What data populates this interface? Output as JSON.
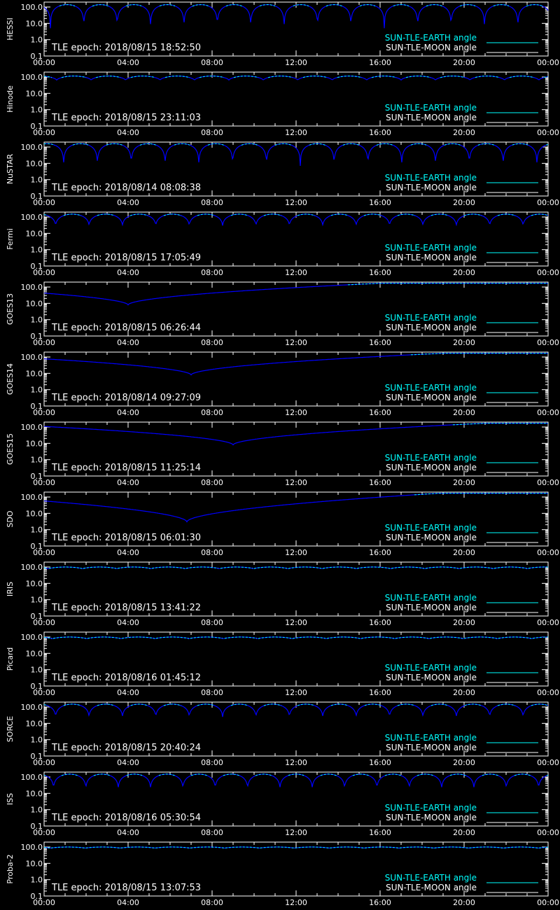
{
  "colors": {
    "background": "#000000",
    "axis": "#ffffff",
    "earth_curve": "#00ffff",
    "moon_curve": "#0000ff",
    "earth_legend": "#00ffff",
    "moon_legend": "#ffffff"
  },
  "legend": {
    "earth_label": "SUN-TLE-EARTH angle",
    "moon_label": "SUN-TLE-MOON angle"
  },
  "chart_data": {
    "type": "line",
    "scale": "log",
    "ylim": [
      0.1,
      200
    ],
    "yticks": [
      "100.0",
      "10.0",
      "1.0",
      "0.1"
    ],
    "xticks": [
      "00:00",
      "04:00",
      "08:00",
      "12:00",
      "16:00",
      "20:00",
      "00:00"
    ],
    "xlim_hours": [
      0,
      24
    ],
    "panels": [
      {
        "name": "HESSI",
        "epoch": "TLE epoch: 2018/08/15 18:52:50",
        "period_hours": 1.59,
        "phase": 0.3,
        "min": 5,
        "max": 140,
        "shape": "periodic"
      },
      {
        "name": "Hinode",
        "epoch": "TLE epoch: 2018/08/15 23:11:03",
        "period_hours": 1.64,
        "phase": 0.6,
        "min": 65,
        "max": 115,
        "shape": "periodic"
      },
      {
        "name": "NuSTAR",
        "epoch": "TLE epoch: 2018/08/14 08:08:38",
        "period_hours": 1.61,
        "phase": 0.93,
        "min": 7,
        "max": 160,
        "shape": "periodic"
      },
      {
        "name": "Fermi",
        "epoch": "TLE epoch: 2018/08/15 17:05:49",
        "period_hours": 1.59,
        "phase": 0.55,
        "min": 30,
        "max": 150,
        "shape": "periodic"
      },
      {
        "name": "GOES13",
        "epoch": "TLE epoch: 2018/08/15 06:26:44",
        "period_hours": 24,
        "phase": 4.0,
        "min": 8,
        "max": 170,
        "shape": "geo"
      },
      {
        "name": "GOES14",
        "epoch": "TLE epoch: 2018/08/14 09:27:09",
        "period_hours": 24,
        "phase": 7.0,
        "min": 8,
        "max": 170,
        "shape": "geo"
      },
      {
        "name": "GOES15",
        "epoch": "TLE epoch: 2018/08/15 11:25:14",
        "period_hours": 24,
        "phase": 9.0,
        "min": 8,
        "max": 170,
        "shape": "geo"
      },
      {
        "name": "SDO",
        "epoch": "TLE epoch: 2018/08/15 06:01:30",
        "period_hours": 24,
        "phase": 6.8,
        "min": 3,
        "max": 170,
        "shape": "geo"
      },
      {
        "name": "IRIS",
        "epoch": "TLE epoch: 2018/08/15 13:41:22",
        "period_hours": 1.63,
        "phase": 0.2,
        "min": 78,
        "max": 100,
        "shape": "periodic"
      },
      {
        "name": "Picard",
        "epoch": "TLE epoch: 2018/08/16 01:45:12",
        "period_hours": 1.63,
        "phase": 0.4,
        "min": 78,
        "max": 100,
        "shape": "periodic"
      },
      {
        "name": "SORCE",
        "epoch": "TLE epoch: 2018/08/15 20:40:24",
        "period_hours": 1.59,
        "phase": 0.55,
        "min": 25,
        "max": 150,
        "shape": "periodic"
      },
      {
        "name": "ISS",
        "epoch": "TLE epoch: 2018/08/16 05:30:54",
        "period_hours": 1.54,
        "phase": 0.45,
        "min": 20,
        "max": 150,
        "shape": "periodic"
      },
      {
        "name": "Proba-2",
        "epoch": "TLE epoch: 2018/08/15 13:07:53",
        "period_hours": 1.66,
        "phase": 0.3,
        "min": 85,
        "max": 100,
        "shape": "periodic"
      }
    ]
  }
}
